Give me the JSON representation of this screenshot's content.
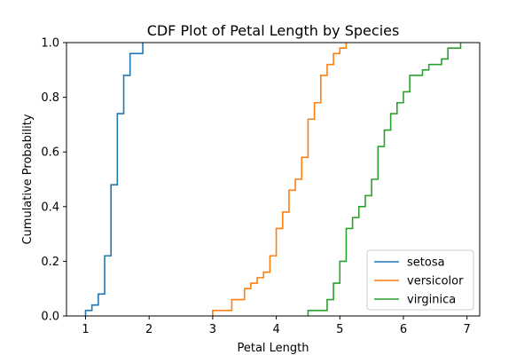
{
  "chart_data": {
    "type": "line",
    "title": "CDF Plot of Petal Length by Species",
    "xlabel": "Petal Length",
    "ylabel": "Cumulative Probability",
    "xlim": [
      0.7,
      7.2
    ],
    "ylim": [
      0.0,
      1.0
    ],
    "xticks": [
      "1",
      "2",
      "3",
      "4",
      "5",
      "6",
      "7"
    ],
    "yticks": [
      "0.0",
      "0.2",
      "0.4",
      "0.6",
      "0.8",
      "1.0"
    ],
    "grid": false,
    "legend_position": "lower right",
    "series": [
      {
        "name": "setosa",
        "color": "#1f77b4",
        "x": [
          1.0,
          1.1,
          1.2,
          1.3,
          1.4,
          1.5,
          1.6,
          1.7,
          1.9
        ],
        "y": [
          0.02,
          0.04,
          0.08,
          0.22,
          0.48,
          0.74,
          0.88,
          0.96,
          1.0
        ]
      },
      {
        "name": "versicolor",
        "color": "#ff7f0e",
        "x": [
          3.0,
          3.3,
          3.5,
          3.6,
          3.7,
          3.8,
          3.9,
          4.0,
          4.1,
          4.2,
          4.3,
          4.4,
          4.5,
          4.6,
          4.7,
          4.8,
          4.9,
          5.0,
          5.1
        ],
        "y": [
          0.02,
          0.06,
          0.1,
          0.12,
          0.14,
          0.16,
          0.22,
          0.32,
          0.38,
          0.46,
          0.5,
          0.58,
          0.72,
          0.78,
          0.88,
          0.92,
          0.96,
          0.98,
          1.0
        ]
      },
      {
        "name": "virginica",
        "color": "#2ca02c",
        "x": [
          4.5,
          4.8,
          4.9,
          5.0,
          5.1,
          5.2,
          5.3,
          5.4,
          5.5,
          5.6,
          5.7,
          5.8,
          5.9,
          6.0,
          6.1,
          6.3,
          6.4,
          6.6,
          6.7,
          6.9
        ],
        "y": [
          0.02,
          0.06,
          0.12,
          0.2,
          0.32,
          0.36,
          0.4,
          0.44,
          0.5,
          0.62,
          0.68,
          0.74,
          0.78,
          0.82,
          0.88,
          0.9,
          0.92,
          0.94,
          0.98,
          1.0
        ]
      }
    ]
  }
}
